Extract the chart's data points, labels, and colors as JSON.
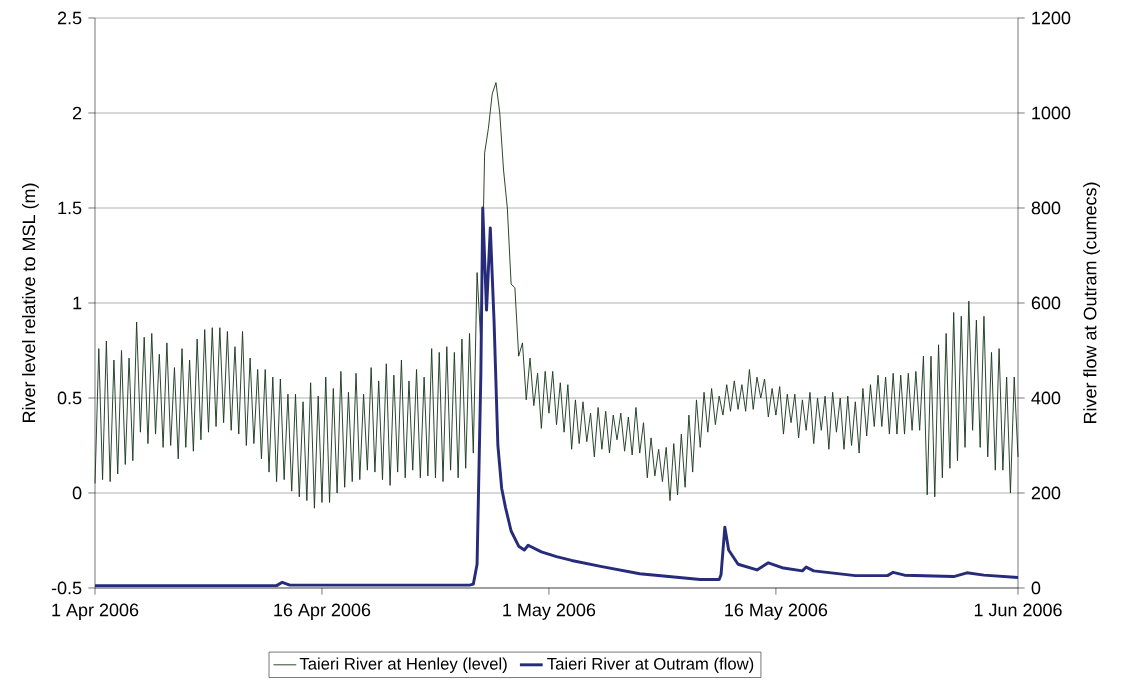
{
  "chart_data": {
    "type": "line",
    "xlabel": null,
    "ylabel": "River level relative to MSL (m)",
    "y2label": "River flow at Outram (cumecs)",
    "xlim": [
      "2006-04-01",
      "2006-06-01"
    ],
    "xticks": [
      {
        "value": "2006-04-01",
        "label": "1 Apr 2006"
      },
      {
        "value": "2006-04-16",
        "label": "16 Apr 2006"
      },
      {
        "value": "2006-05-01",
        "label": "1 May 2006"
      },
      {
        "value": "2006-05-16",
        "label": "16 May 2006"
      },
      {
        "value": "2006-06-01",
        "label": "1 Jun 2006"
      }
    ],
    "ylim": [
      -0.5,
      2.5
    ],
    "yticks": [
      -0.5,
      0,
      0.5,
      1,
      1.5,
      2,
      2.5
    ],
    "y2lim": [
      0,
      1200
    ],
    "y2ticks": [
      0,
      200,
      400,
      600,
      800,
      1000,
      1200
    ],
    "grid": "y",
    "legend": "bottom",
    "marker": "none",
    "line_style": "solid",
    "series": [
      {
        "name": "Taieri River at Henley (level)",
        "color": "#1b3a1e",
        "x": [
          "2006-04-01T00:00",
          "2006-04-01T06:00",
          "2006-04-01T12:00",
          "2006-04-01T18:00",
          "2006-04-02T00:00",
          "2006-04-02T06:00",
          "2006-04-02T12:00",
          "2006-04-02T18:00",
          "2006-04-03T00:00",
          "2006-04-03T06:00",
          "2006-04-03T12:00",
          "2006-04-03T18:00",
          "2006-04-04T00:00",
          "2006-04-04T06:00",
          "2006-04-04T12:00",
          "2006-04-04T18:00",
          "2006-04-05T00:00",
          "2006-04-05T06:00",
          "2006-04-05T12:00",
          "2006-04-05T18:00",
          "2006-04-06T00:00",
          "2006-04-06T06:00",
          "2006-04-06T12:00",
          "2006-04-06T18:00",
          "2006-04-07T00:00",
          "2006-04-07T06:00",
          "2006-04-07T12:00",
          "2006-04-07T18:00",
          "2006-04-08T00:00",
          "2006-04-08T06:00",
          "2006-04-08T12:00",
          "2006-04-08T18:00",
          "2006-04-09T00:00",
          "2006-04-09T06:00",
          "2006-04-09T12:00",
          "2006-04-09T18:00",
          "2006-04-10T00:00",
          "2006-04-10T06:00",
          "2006-04-10T12:00",
          "2006-04-10T18:00",
          "2006-04-11T00:00",
          "2006-04-11T06:00",
          "2006-04-11T12:00",
          "2006-04-11T18:00",
          "2006-04-12T00:00",
          "2006-04-12T06:00",
          "2006-04-12T12:00",
          "2006-04-12T18:00",
          "2006-04-13T00:00",
          "2006-04-13T06:00",
          "2006-04-13T12:00",
          "2006-04-13T18:00",
          "2006-04-14T00:00",
          "2006-04-14T06:00",
          "2006-04-14T12:00",
          "2006-04-14T18:00",
          "2006-04-15T00:00",
          "2006-04-15T06:00",
          "2006-04-15T12:00",
          "2006-04-15T18:00",
          "2006-04-16T00:00",
          "2006-04-16T06:00",
          "2006-04-16T12:00",
          "2006-04-16T18:00",
          "2006-04-17T00:00",
          "2006-04-17T06:00",
          "2006-04-17T12:00",
          "2006-04-17T18:00",
          "2006-04-18T00:00",
          "2006-04-18T06:00",
          "2006-04-18T12:00",
          "2006-04-18T18:00",
          "2006-04-19T00:00",
          "2006-04-19T06:00",
          "2006-04-19T12:00",
          "2006-04-19T18:00",
          "2006-04-20T00:00",
          "2006-04-20T06:00",
          "2006-04-20T12:00",
          "2006-04-20T18:00",
          "2006-04-21T00:00",
          "2006-04-21T06:00",
          "2006-04-21T12:00",
          "2006-04-21T18:00",
          "2006-04-22T00:00",
          "2006-04-22T06:00",
          "2006-04-22T12:00",
          "2006-04-22T18:00",
          "2006-04-23T00:00",
          "2006-04-23T06:00",
          "2006-04-23T12:00",
          "2006-04-23T18:00",
          "2006-04-24T00:00",
          "2006-04-24T06:00",
          "2006-04-24T12:00",
          "2006-04-24T18:00",
          "2006-04-25T00:00",
          "2006-04-25T06:00",
          "2006-04-25T12:00",
          "2006-04-25T18:00",
          "2006-04-26T00:00",
          "2006-04-26T06:00",
          "2006-04-26T12:00",
          "2006-04-26T18:00",
          "2006-04-27T00:00",
          "2006-04-27T06:00",
          "2006-04-27T12:00",
          "2006-04-27T18:00",
          "2006-04-28T00:00",
          "2006-04-28T06:00",
          "2006-04-28T12:00",
          "2006-04-28T18:00",
          "2006-04-29T00:00",
          "2006-04-29T06:00",
          "2006-04-29T12:00",
          "2006-04-29T18:00",
          "2006-04-30T00:00",
          "2006-04-30T06:00",
          "2006-04-30T12:00",
          "2006-04-30T18:00",
          "2006-05-01T00:00",
          "2006-05-01T06:00",
          "2006-05-01T12:00",
          "2006-05-01T18:00",
          "2006-05-02T00:00",
          "2006-05-02T06:00",
          "2006-05-02T12:00",
          "2006-05-02T18:00",
          "2006-05-03T00:00",
          "2006-05-03T06:00",
          "2006-05-03T12:00",
          "2006-05-03T18:00",
          "2006-05-04T00:00",
          "2006-05-04T06:00",
          "2006-05-04T12:00",
          "2006-05-04T18:00",
          "2006-05-05T00:00",
          "2006-05-05T06:00",
          "2006-05-05T12:00",
          "2006-05-05T18:00",
          "2006-05-06T00:00",
          "2006-05-06T06:00",
          "2006-05-06T12:00",
          "2006-05-06T18:00",
          "2006-05-07T00:00",
          "2006-05-07T06:00",
          "2006-05-07T12:00",
          "2006-05-07T18:00",
          "2006-05-08T00:00",
          "2006-05-08T06:00",
          "2006-05-08T12:00",
          "2006-05-08T18:00",
          "2006-05-09T00:00",
          "2006-05-09T06:00",
          "2006-05-09T12:00",
          "2006-05-09T18:00",
          "2006-05-10T00:00",
          "2006-05-10T06:00",
          "2006-05-10T12:00",
          "2006-05-10T18:00",
          "2006-05-11T00:00",
          "2006-05-11T06:00",
          "2006-05-11T12:00",
          "2006-05-11T18:00",
          "2006-05-12T00:00",
          "2006-05-12T06:00",
          "2006-05-12T12:00",
          "2006-05-12T18:00",
          "2006-05-13T00:00",
          "2006-05-13T06:00",
          "2006-05-13T12:00",
          "2006-05-13T18:00",
          "2006-05-14T00:00",
          "2006-05-14T06:00",
          "2006-05-14T12:00",
          "2006-05-14T18:00",
          "2006-05-15T00:00",
          "2006-05-15T06:00",
          "2006-05-15T12:00",
          "2006-05-15T18:00",
          "2006-05-16T00:00",
          "2006-05-16T06:00",
          "2006-05-16T12:00",
          "2006-05-16T18:00",
          "2006-05-17T00:00",
          "2006-05-17T06:00",
          "2006-05-17T12:00",
          "2006-05-17T18:00",
          "2006-05-18T00:00",
          "2006-05-18T06:00",
          "2006-05-18T12:00",
          "2006-05-18T18:00",
          "2006-05-19T00:00",
          "2006-05-19T06:00",
          "2006-05-19T12:00",
          "2006-05-19T18:00",
          "2006-05-20T00:00",
          "2006-05-20T06:00",
          "2006-05-20T12:00",
          "2006-05-20T18:00",
          "2006-05-21T00:00",
          "2006-05-21T06:00",
          "2006-05-21T12:00",
          "2006-05-21T18:00",
          "2006-05-22T00:00",
          "2006-05-22T06:00",
          "2006-05-22T12:00",
          "2006-05-22T18:00",
          "2006-05-23T00:00",
          "2006-05-23T06:00",
          "2006-05-23T12:00",
          "2006-05-23T18:00",
          "2006-05-24T00:00",
          "2006-05-24T06:00",
          "2006-05-24T12:00",
          "2006-05-24T18:00",
          "2006-05-25T00:00",
          "2006-05-25T06:00",
          "2006-05-25T12:00",
          "2006-05-25T18:00",
          "2006-05-26T00:00",
          "2006-05-26T06:00",
          "2006-05-26T12:00",
          "2006-05-26T18:00",
          "2006-05-27T00:00",
          "2006-05-27T06:00",
          "2006-05-27T12:00",
          "2006-05-27T18:00",
          "2006-05-28T00:00",
          "2006-05-28T06:00",
          "2006-05-28T12:00",
          "2006-05-28T18:00",
          "2006-05-29T00:00",
          "2006-05-29T06:00",
          "2006-05-29T12:00",
          "2006-05-29T18:00",
          "2006-05-30T00:00",
          "2006-05-30T06:00",
          "2006-05-30T12:00",
          "2006-05-30T18:00",
          "2006-05-31T00:00",
          "2006-05-31T06:00",
          "2006-05-31T12:00",
          "2006-05-31T18:00",
          "2006-06-01T00:00"
        ],
        "values": [
          0.05,
          0.76,
          0.07,
          0.8,
          0.06,
          0.7,
          0.1,
          0.75,
          0.15,
          0.71,
          0.17,
          0.9,
          0.32,
          0.82,
          0.26,
          0.84,
          0.31,
          0.73,
          0.24,
          0.79,
          0.25,
          0.66,
          0.18,
          0.76,
          0.24,
          0.7,
          0.22,
          0.81,
          0.28,
          0.86,
          0.32,
          0.87,
          0.35,
          0.87,
          0.37,
          0.85,
          0.33,
          0.77,
          0.31,
          0.85,
          0.25,
          0.71,
          0.26,
          0.65,
          0.18,
          0.65,
          0.11,
          0.61,
          0.06,
          0.6,
          0.07,
          0.52,
          0.01,
          0.52,
          -0.02,
          0.48,
          -0.04,
          0.58,
          -0.08,
          0.51,
          -0.05,
          0.61,
          -0.05,
          0.55,
          0.0,
          0.64,
          0.03,
          0.53,
          0.06,
          0.63,
          0.07,
          0.52,
          0.12,
          0.66,
          0.11,
          0.59,
          0.07,
          0.68,
          0.04,
          0.62,
          0.11,
          0.7,
          0.08,
          0.59,
          0.12,
          0.65,
          0.08,
          0.61,
          0.09,
          0.76,
          0.08,
          0.74,
          0.06,
          0.77,
          0.12,
          0.74,
          0.08,
          0.81,
          0.13,
          0.84,
          0.21,
          1.16,
          0.79,
          1.79,
          1.92,
          2.1,
          2.16,
          2.0,
          1.7,
          1.5,
          1.1,
          1.08,
          0.72,
          0.79,
          0.49,
          0.71,
          0.46,
          0.63,
          0.34,
          0.64,
          0.42,
          0.64,
          0.36,
          0.58,
          0.32,
          0.57,
          0.23,
          0.49,
          0.26,
          0.48,
          0.27,
          0.42,
          0.19,
          0.45,
          0.23,
          0.43,
          0.21,
          0.41,
          0.28,
          0.42,
          0.22,
          0.4,
          0.2,
          0.45,
          0.21,
          0.37,
          0.08,
          0.29,
          0.09,
          0.23,
          0.06,
          0.24,
          -0.04,
          0.26,
          -0.01,
          0.31,
          0.03,
          0.41,
          0.11,
          0.49,
          0.24,
          0.53,
          0.32,
          0.55,
          0.36,
          0.51,
          0.41,
          0.57,
          0.43,
          0.59,
          0.44,
          0.57,
          0.43,
          0.65,
          0.44,
          0.61,
          0.5,
          0.6,
          0.4,
          0.55,
          0.41,
          0.56,
          0.31,
          0.52,
          0.37,
          0.52,
          0.29,
          0.49,
          0.33,
          0.53,
          0.26,
          0.5,
          0.33,
          0.51,
          0.23,
          0.53,
          0.32,
          0.5,
          0.23,
          0.51,
          0.25,
          0.48,
          0.21,
          0.55,
          0.3,
          0.57,
          0.35,
          0.62,
          0.35,
          0.61,
          0.31,
          0.63,
          0.31,
          0.62,
          0.31,
          0.63,
          0.33,
          0.64,
          0.33,
          0.72,
          -0.01,
          0.72,
          -0.02,
          0.78,
          0.08,
          0.84,
          0.13,
          0.95,
          0.17,
          0.93,
          0.24,
          1.01,
          0.33,
          0.91,
          0.24,
          0.93,
          0.19,
          0.74,
          0.12,
          0.76,
          0.12,
          0.61,
          0.0,
          0.61,
          0.19
        ]
      },
      {
        "name": "Taieri River at Outram (flow)",
        "color": "#262b7a",
        "axis": "y2",
        "x": [
          "2006-04-01T00:00",
          "2006-04-13T00:00",
          "2006-04-13T09:00",
          "2006-04-13T21:00",
          "2006-04-25T18:00",
          "2006-04-26T00:00",
          "2006-04-26T06:00",
          "2006-04-26T12:00",
          "2006-04-26T15:00",
          "2006-04-26T21:00",
          "2006-04-27T03:00",
          "2006-04-27T09:00",
          "2006-04-27T15:00",
          "2006-04-27T21:00",
          "2006-04-28T03:00",
          "2006-04-28T12:00",
          "2006-04-29T00:00",
          "2006-04-29T09:00",
          "2006-04-29T15:00",
          "2006-04-30T12:00",
          "2006-05-01T12:00",
          "2006-05-02T12:00",
          "2006-05-04T12:00",
          "2006-05-07T00:00",
          "2006-05-11T00:00",
          "2006-05-12T06:00",
          "2006-05-12T09:00",
          "2006-05-12T15:00",
          "2006-05-12T21:00",
          "2006-05-13T12:00",
          "2006-05-14T18:00",
          "2006-05-15T12:00",
          "2006-05-16T12:00",
          "2006-05-17T18:00",
          "2006-05-18T00:00",
          "2006-05-18T12:00",
          "2006-05-21T06:00",
          "2006-05-23T09:00",
          "2006-05-23T18:00",
          "2006-05-24T12:00",
          "2006-05-27T18:00",
          "2006-05-28T15:00",
          "2006-05-29T18:00",
          "2006-06-01T00:00"
        ],
        "values": [
          5,
          5,
          12,
          6,
          6,
          8,
          50,
          450,
          800,
          585,
          758,
          560,
          300,
          210,
          170,
          120,
          88,
          80,
          90,
          76,
          66,
          58,
          45,
          30,
          18,
          18,
          28,
          128,
          80,
          50,
          38,
          53,
          42,
          36,
          44,
          36,
          26,
          26,
          33,
          27,
          24,
          32,
          27,
          22
        ]
      }
    ]
  }
}
